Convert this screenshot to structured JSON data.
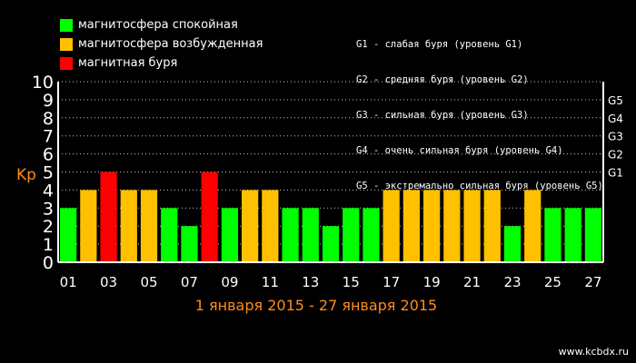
{
  "legend": [
    {
      "label": "магнитосфера спокойная",
      "color": "#00ff00"
    },
    {
      "label": "магнитосфера возбужденная",
      "color": "#ffc000"
    },
    {
      "label": "магнитная буря",
      "color": "#ff0000"
    }
  ],
  "storm_levels": [
    "G1 - слабая буря (уровень G1)",
    "G2 - средняя буря (уровень G2)",
    "G3 - сильная буря (уровень G3)",
    "G4 - очень сильная буря (уровень G4)",
    "G5 - экстремально сильная буря (уровень G5)"
  ],
  "site": "www.kcbdx.ru",
  "chart_data": {
    "type": "bar",
    "title": "",
    "xlabel": "1 января 2015 - 27 января 2015",
    "ylabel": "Kp",
    "ylim": [
      0,
      10
    ],
    "yticks": [
      "0",
      "1",
      "2",
      "3",
      "4",
      "5",
      "6",
      "7",
      "8",
      "9",
      "10"
    ],
    "right_ticks": [
      {
        "label": "G1",
        "value": 5
      },
      {
        "label": "G2",
        "value": 6
      },
      {
        "label": "G3",
        "value": 7
      },
      {
        "label": "G4",
        "value": 8
      },
      {
        "label": "G5",
        "value": 9
      }
    ],
    "categories": [
      "01",
      "02",
      "03",
      "04",
      "05",
      "06",
      "07",
      "08",
      "09",
      "10",
      "11",
      "12",
      "13",
      "14",
      "15",
      "16",
      "17",
      "18",
      "19",
      "20",
      "21",
      "22",
      "23",
      "24",
      "25",
      "26",
      "27"
    ],
    "xtick_labels": [
      "01",
      "03",
      "05",
      "07",
      "09",
      "11",
      "13",
      "15",
      "17",
      "19",
      "21",
      "23",
      "25",
      "27"
    ],
    "values": [
      3,
      4,
      5,
      4,
      4,
      3,
      2,
      5,
      3,
      4,
      4,
      3,
      3,
      2,
      3,
      3,
      4,
      4,
      4,
      4,
      4,
      4,
      2,
      4,
      3,
      3,
      3
    ],
    "colors": {
      "calm": "#00ff00",
      "active": "#ffc000",
      "storm": "#ff0000"
    },
    "grid": true
  }
}
